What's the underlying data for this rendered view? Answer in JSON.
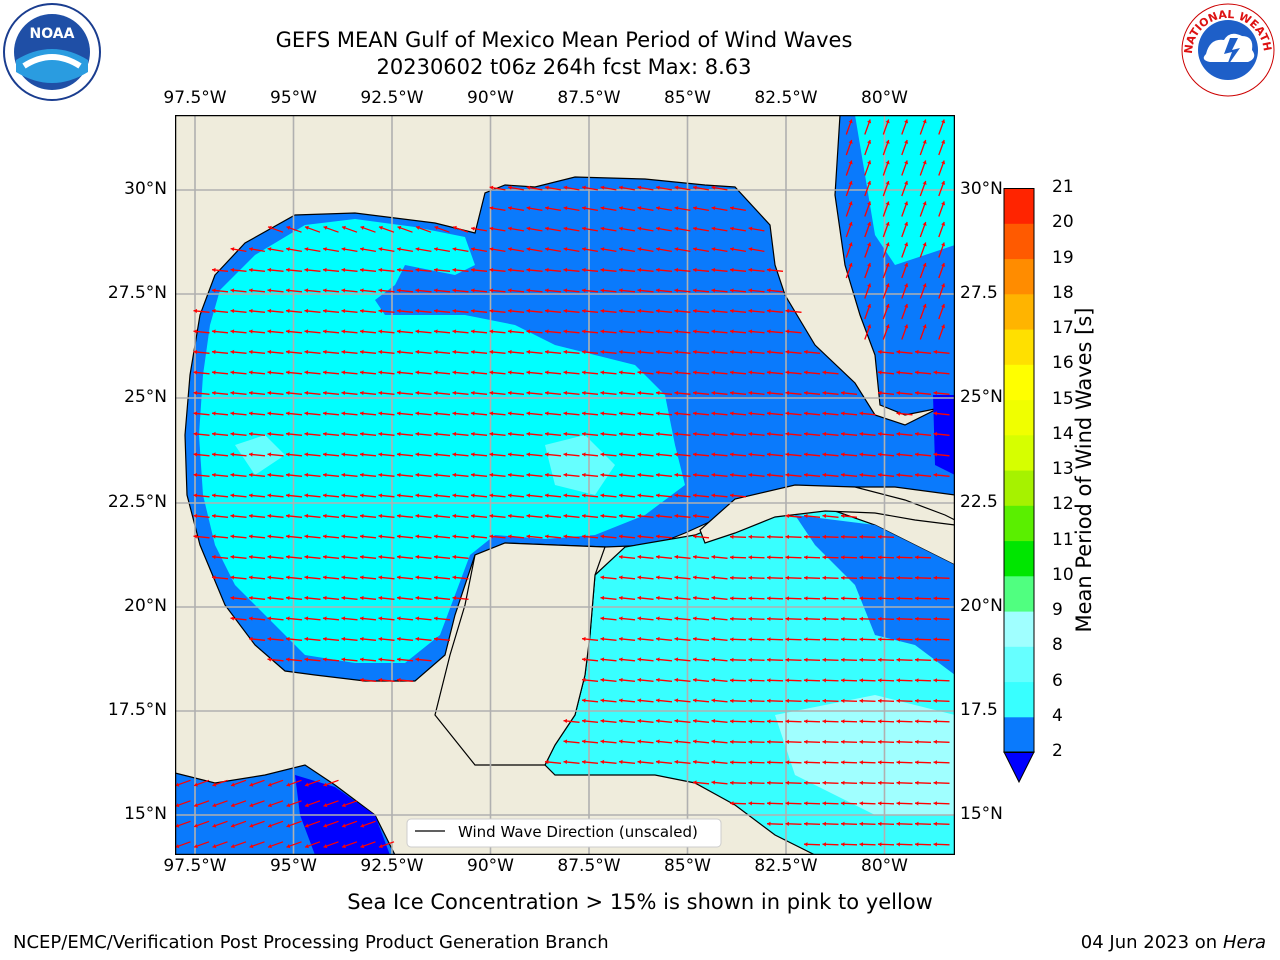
{
  "header": {
    "title_line1": "GEFS MEAN Gulf of Mexico Mean Period of Wind Waves",
    "title_line2": "20230602 t06z 264h fcst   Max: 8.63"
  },
  "logos": {
    "left": "NOAA",
    "right_text": "NATIONAL WEATHER SERVICE"
  },
  "map": {
    "x_ticks": [
      "97.5°W",
      "95°W",
      "92.5°W",
      "90°W",
      "87.5°W",
      "85°W",
      "82.5°W",
      "80°W"
    ],
    "y_ticks_left": [
      "30°N",
      "27.5°N",
      "25°N",
      "22.5°N",
      "20°N",
      "17.5°N",
      "15°N"
    ],
    "y_ticks_right": [
      "30°N",
      "27.5",
      "25°N",
      "22.5",
      "20°N",
      "17.5",
      "15°N"
    ],
    "legend": "Wind Wave Direction (unscaled)",
    "colors": {
      "land": "#efecdc",
      "grid": "#b0b0b0",
      "arrow": "#ff0000",
      "coast": "#000000"
    }
  },
  "colorbar": {
    "label": "Mean Period of Wind Waves [s]",
    "ticks": [
      "2",
      "4",
      "6",
      "8",
      "9",
      "10",
      "11",
      "12",
      "13",
      "14",
      "15",
      "16",
      "17",
      "18",
      "19",
      "20",
      "21"
    ],
    "colors": [
      "#0a7afc",
      "#00ffff",
      "#38ffff",
      "#66ffff",
      "#a0ffff",
      "#50ff80",
      "#00e600",
      "#5aef00",
      "#a6f200",
      "#d6ff00",
      "#f0ff00",
      "#ffff00",
      "#ffe000",
      "#ffb400",
      "#ff8c00",
      "#ff5a00",
      "#ff2400",
      "#ff0000"
    ],
    "under_color": "#0000ff"
  },
  "footer": {
    "subtitle": "Sea Ice Concentration > 15% is shown in pink to yellow",
    "credit": "NCEP/EMC/Verification Post Processing Product Generation Branch",
    "date": "04 Jun 2023 on",
    "host": "Hera"
  }
}
